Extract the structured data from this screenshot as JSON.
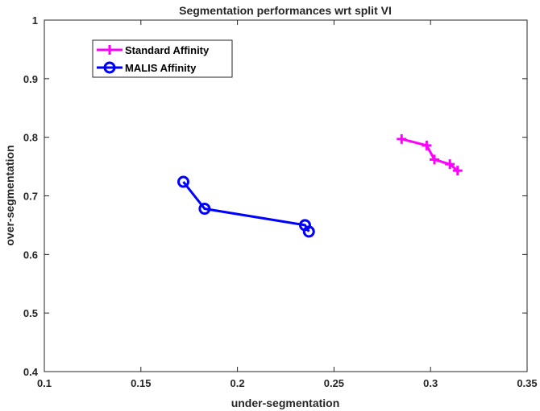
{
  "chart_data": {
    "type": "line",
    "title": "Segmentation performances wrt split VI",
    "xlabel": "under-segmentation",
    "ylabel": "over-segmentation",
    "xlim": [
      0.1,
      0.35
    ],
    "ylim": [
      0.4,
      1.0
    ],
    "xticks": [
      0.1,
      0.15,
      0.2,
      0.25,
      0.3,
      0.35
    ],
    "xtick_labels": [
      "0.1",
      "0.15",
      "0.2",
      "0.25",
      "0.3",
      "0.35"
    ],
    "yticks": [
      0.4,
      0.5,
      0.6,
      0.7,
      0.8,
      0.9,
      1.0
    ],
    "ytick_labels": [
      "0.4",
      "0.5",
      "0.6",
      "0.7",
      "0.8",
      "0.9",
      "1"
    ],
    "grid": false,
    "legend_position": "top-left",
    "series": [
      {
        "name": "Standard Affinity",
        "color": "#ff00ff",
        "marker": "plus",
        "x": [
          0.285,
          0.298,
          0.302,
          0.31,
          0.314
        ],
        "y": [
          0.797,
          0.786,
          0.762,
          0.754,
          0.743
        ]
      },
      {
        "name": "MALIS Affinity",
        "color": "#0000ff",
        "marker": "circle",
        "x": [
          0.172,
          0.183,
          0.235,
          0.237
        ],
        "y": [
          0.724,
          0.678,
          0.65,
          0.639
        ]
      }
    ]
  }
}
